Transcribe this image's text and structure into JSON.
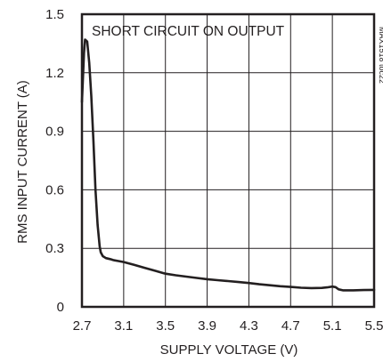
{
  "chart_data": {
    "type": "line",
    "title": "",
    "xlabel": "SUPPLY VOLTAGE (V)",
    "ylabel": "RMS INPUT CURRENT (A)",
    "annotation": "SHORT CIRCUIT ON OUTPUT",
    "figure_id": "MAX1518 toc22",
    "xlim": [
      2.7,
      5.5
    ],
    "ylim": [
      0,
      1.5
    ],
    "x_ticks": [
      "2.7",
      "3.1",
      "3.5",
      "3.9",
      "4.3",
      "4.7",
      "5.1",
      "5.5"
    ],
    "y_ticks": [
      "0",
      "0.3",
      "0.6",
      "0.9",
      "1.2",
      "1.5"
    ],
    "grid": true,
    "series": [
      {
        "x": [
          2.7,
          2.72,
          2.73,
          2.75,
          2.77,
          2.79,
          2.81,
          2.83,
          2.85,
          2.87,
          2.88,
          2.9,
          2.93,
          2.97,
          3.0,
          3.05,
          3.1,
          3.2,
          3.3,
          3.4,
          3.5,
          3.6,
          3.7,
          3.8,
          3.9,
          4.0,
          4.1,
          4.2,
          4.3,
          4.4,
          4.5,
          4.6,
          4.7,
          4.8,
          4.9,
          5.0,
          5.05,
          5.1,
          5.13,
          5.16,
          5.2,
          5.3,
          5.4,
          5.5
        ],
        "y": [
          1.05,
          1.3,
          1.37,
          1.36,
          1.25,
          1.08,
          0.85,
          0.6,
          0.42,
          0.31,
          0.28,
          0.26,
          0.25,
          0.245,
          0.24,
          0.235,
          0.23,
          0.215,
          0.2,
          0.185,
          0.17,
          0.162,
          0.155,
          0.148,
          0.142,
          0.137,
          0.132,
          0.127,
          0.122,
          0.116,
          0.111,
          0.106,
          0.102,
          0.098,
          0.096,
          0.097,
          0.1,
          0.104,
          0.101,
          0.09,
          0.085,
          0.085,
          0.086,
          0.087
        ]
      }
    ]
  }
}
